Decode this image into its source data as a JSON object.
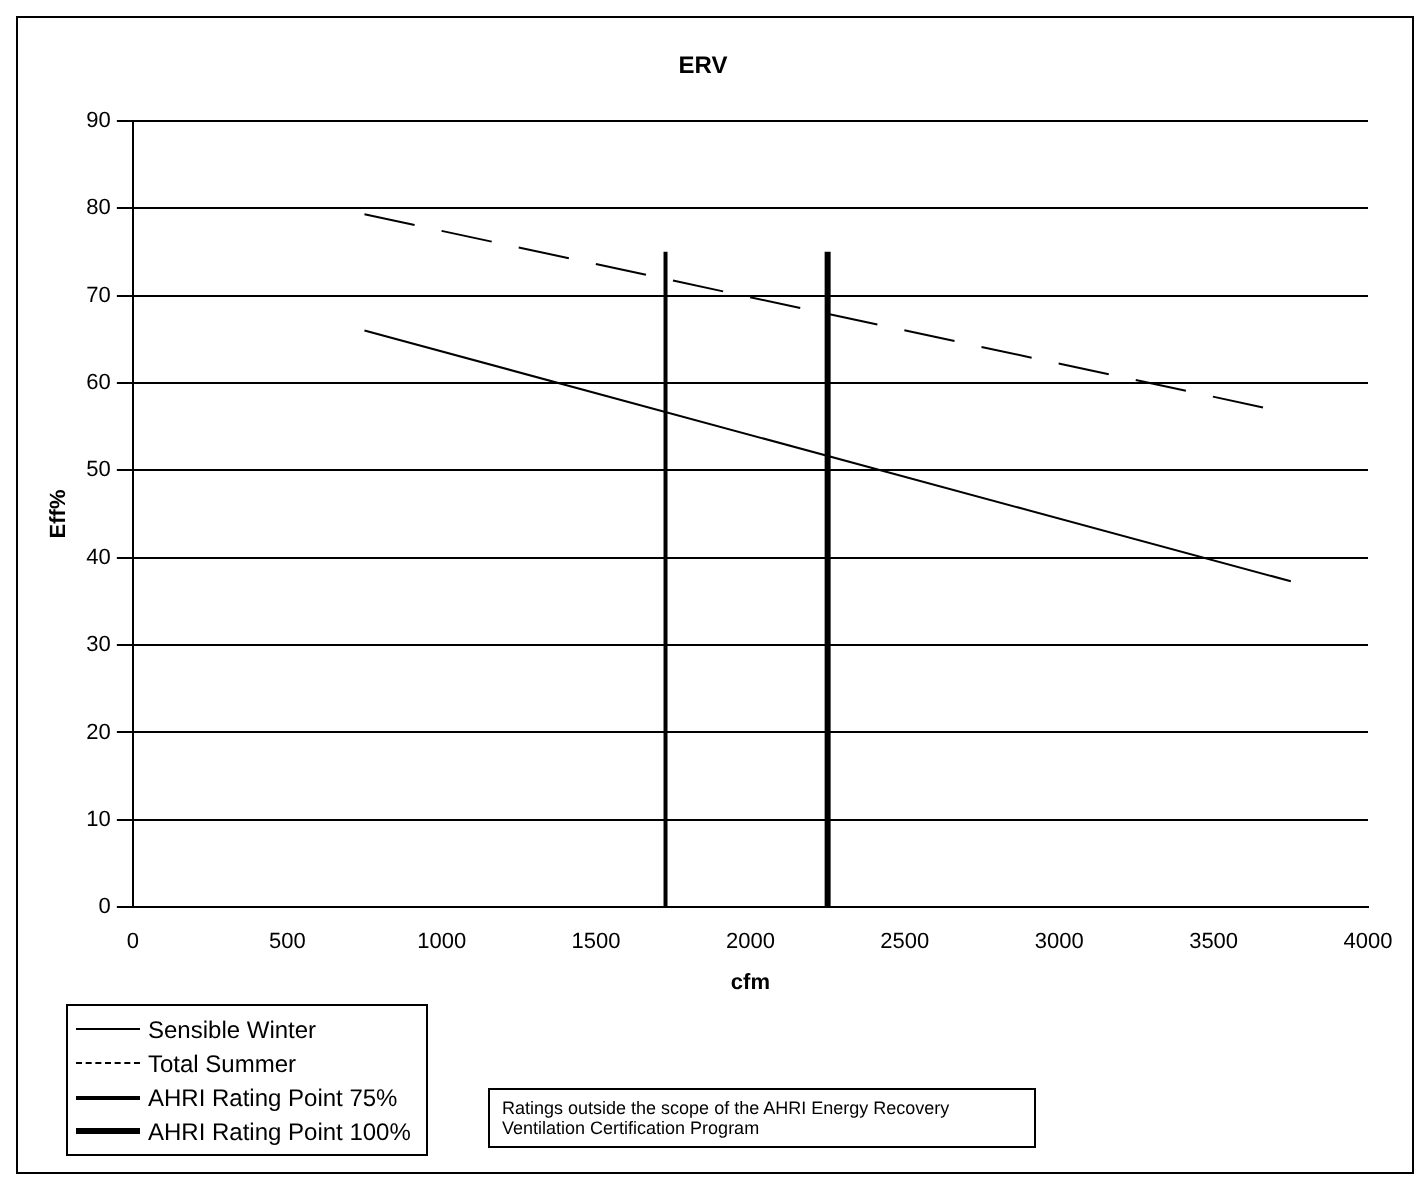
{
  "chart_data": {
    "type": "line",
    "title": "ERV",
    "xlabel": "cfm",
    "ylabel": "Eff%",
    "xlim": [
      0,
      4000
    ],
    "xticks": [
      0,
      500,
      1000,
      1500,
      2000,
      2500,
      3000,
      3500,
      4000
    ],
    "ylim": [
      0,
      90
    ],
    "yticks": [
      0,
      10,
      20,
      30,
      40,
      50,
      60,
      70,
      80,
      90
    ],
    "grid": "y",
    "legend": "bottom left",
    "marker": "none",
    "series": [
      {
        "name": "Sensible Winter",
        "color": "#000000",
        "x": [
          750,
          3750
        ],
        "values": [
          66,
          37.3
        ],
        "line_style": "solid"
      },
      {
        "name": "Total Summer",
        "color": "#000000",
        "x": [
          750,
          3660
        ],
        "values": [
          79.3,
          57.2
        ],
        "line_style": "dashed"
      },
      {
        "name": "AHRI Rating Point 75%",
        "color": "#000000",
        "x": [
          1725,
          1725
        ],
        "values": [
          0,
          75
        ],
        "line_style": "solid"
      },
      {
        "name": "AHRI Rating Point 100%",
        "color": "#000000",
        "x": [
          2250,
          2250
        ],
        "values": [
          0,
          75
        ],
        "line_style": "solid"
      }
    ],
    "annotations": [
      "Ratings outside the scope of the AHRI Energy Recovery Ventilation Certification Program"
    ]
  }
}
